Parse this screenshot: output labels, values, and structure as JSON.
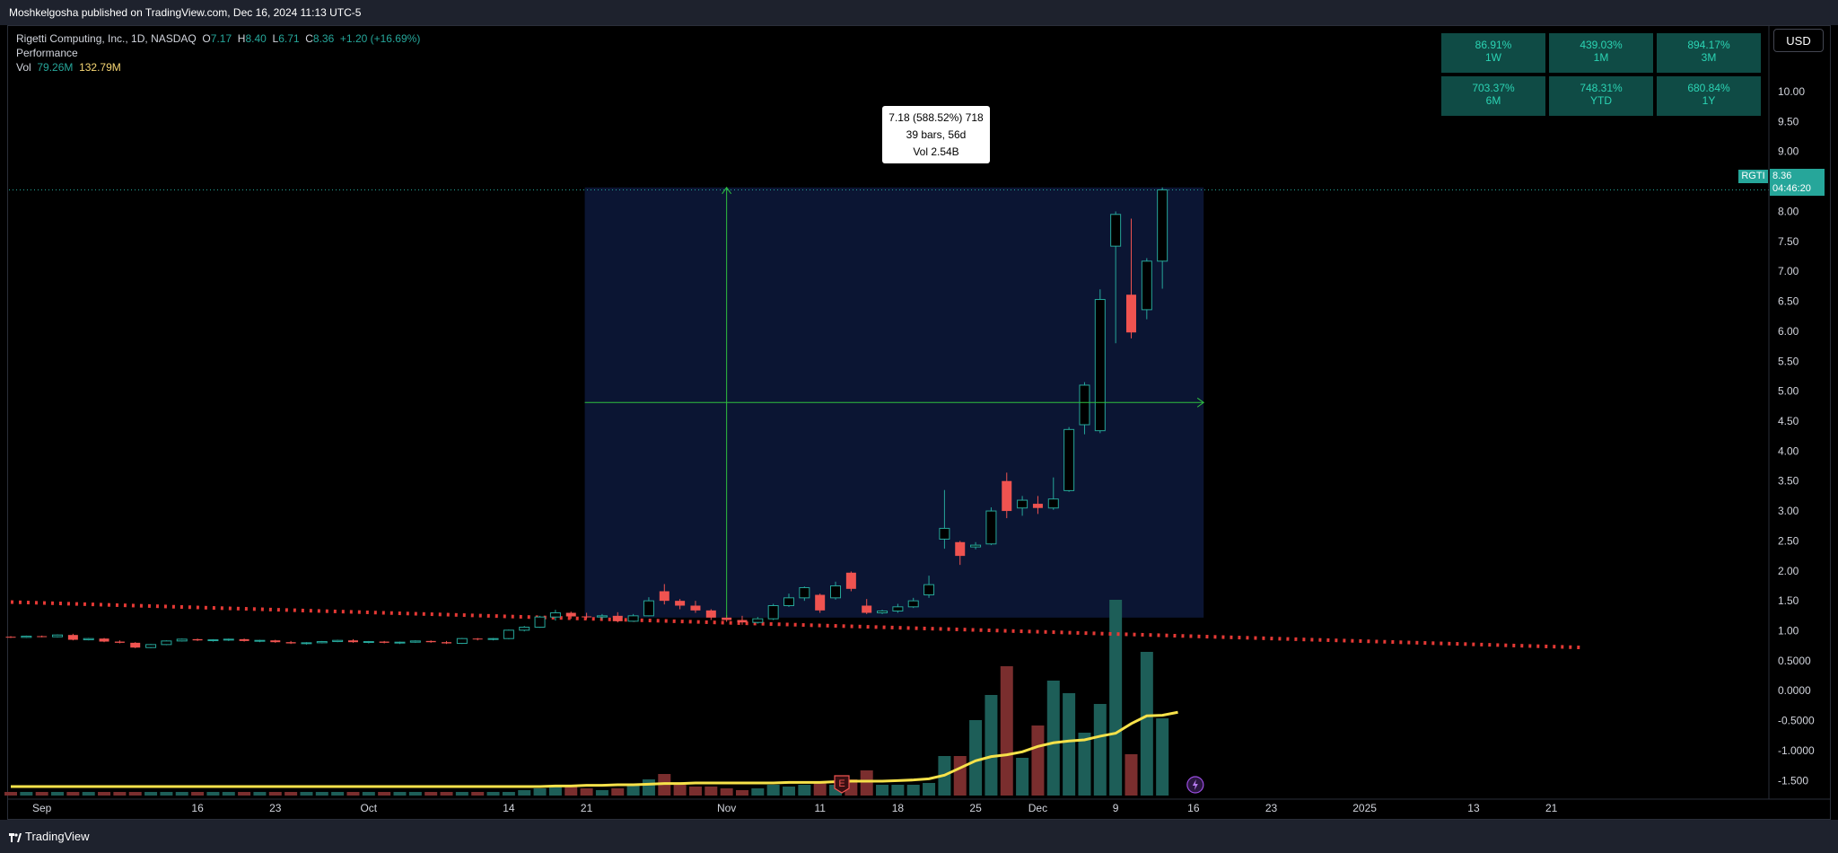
{
  "header": {
    "published": "Moshkelgosha published on TradingView.com, Dec 16, 2024 11:13 UTC-5"
  },
  "legend": {
    "symbol": "Rigetti Computing, Inc., 1D, NASDAQ",
    "open_label": "O",
    "open": "7.17",
    "high_label": "H",
    "high": "8.40",
    "low_label": "L",
    "low": "6.71",
    "close_label": "C",
    "close": "8.36",
    "change": "+1.20 (+16.69%)",
    "indicator": "Performance",
    "vol_label": "Vol",
    "vol": "79.26M",
    "vol_ma": "132.79M"
  },
  "performance": [
    {
      "value": "86.91%",
      "period": "1W"
    },
    {
      "value": "439.03%",
      "period": "1M"
    },
    {
      "value": "894.17%",
      "period": "3M"
    },
    {
      "value": "703.37%",
      "period": "6M"
    },
    {
      "value": "748.31%",
      "period": "YTD"
    },
    {
      "value": "680.84%",
      "period": "1Y"
    }
  ],
  "currency_button": "USD",
  "measure_tooltip": {
    "line1": "7.18 (588.52%) 718",
    "line2": "39 bars, 56d",
    "line3": "Vol 2.54B"
  },
  "price_badge": {
    "ticker": "RGTI",
    "price": "8.36",
    "countdown": "04:46:20"
  },
  "footer": {
    "brand": "TradingView"
  },
  "colors": {
    "up": "#26a69a",
    "down": "#ef5350",
    "ma": "#f7e24a",
    "measure_bg": "#0b1533",
    "dotted_ma": "#e53935"
  },
  "chart_data": {
    "type": "candlestick",
    "ylim": [
      -1.6,
      10.3
    ],
    "y_ticks": [
      "10.00",
      "9.50",
      "9.00",
      "8.50",
      "8.00",
      "7.50",
      "7.00",
      "6.50",
      "6.00",
      "5.50",
      "5.00",
      "4.50",
      "4.00",
      "3.50",
      "3.00",
      "2.50",
      "2.00",
      "1.50",
      "1.00",
      "0.5000",
      "0.0000",
      "-0.5000",
      "-1.0000",
      "-1.500"
    ],
    "y_tick_values": [
      10,
      9.5,
      9,
      8.5,
      8,
      7.5,
      7,
      6.5,
      6,
      5.5,
      5,
      4.5,
      4,
      3.5,
      3,
      2.5,
      2,
      1.5,
      1,
      0.5,
      0,
      -0.5,
      -1,
      -1.5
    ],
    "x_ticks": [
      {
        "label": "Sep",
        "idx": 2
      },
      {
        "label": "16",
        "idx": 12
      },
      {
        "label": "23",
        "idx": 17
      },
      {
        "label": "Oct",
        "idx": 23
      },
      {
        "label": "14",
        "idx": 32
      },
      {
        "label": "21",
        "idx": 37
      },
      {
        "label": "Nov",
        "idx": 46
      },
      {
        "label": "11",
        "idx": 52
      },
      {
        "label": "18",
        "idx": 57
      },
      {
        "label": "25",
        "idx": 62
      },
      {
        "label": "Dec",
        "idx": 66
      },
      {
        "label": "9",
        "idx": 71
      },
      {
        "label": "16",
        "idx": 76
      },
      {
        "label": "23",
        "idx": 81
      },
      {
        "label": "2025",
        "idx": 87
      },
      {
        "label": "13",
        "idx": 94
      },
      {
        "label": "21",
        "idx": 99
      }
    ],
    "candles": [
      [
        0.9,
        0.91,
        0.88,
        0.89
      ],
      [
        0.89,
        0.92,
        0.88,
        0.91
      ],
      [
        0.91,
        0.92,
        0.89,
        0.9
      ],
      [
        0.9,
        0.94,
        0.89,
        0.93
      ],
      [
        0.93,
        0.95,
        0.84,
        0.85
      ],
      [
        0.85,
        0.88,
        0.84,
        0.87
      ],
      [
        0.87,
        0.88,
        0.81,
        0.82
      ],
      [
        0.82,
        0.84,
        0.79,
        0.8
      ],
      [
        0.8,
        0.81,
        0.71,
        0.72
      ],
      [
        0.72,
        0.78,
        0.71,
        0.77
      ],
      [
        0.77,
        0.84,
        0.76,
        0.83
      ],
      [
        0.83,
        0.87,
        0.82,
        0.86
      ],
      [
        0.86,
        0.87,
        0.83,
        0.84
      ],
      [
        0.84,
        0.86,
        0.82,
        0.85
      ],
      [
        0.85,
        0.87,
        0.83,
        0.86
      ],
      [
        0.86,
        0.87,
        0.82,
        0.83
      ],
      [
        0.83,
        0.85,
        0.81,
        0.84
      ],
      [
        0.84,
        0.85,
        0.8,
        0.81
      ],
      [
        0.81,
        0.83,
        0.78,
        0.79
      ],
      [
        0.79,
        0.81,
        0.77,
        0.8
      ],
      [
        0.8,
        0.83,
        0.79,
        0.82
      ],
      [
        0.82,
        0.85,
        0.81,
        0.84
      ],
      [
        0.84,
        0.86,
        0.8,
        0.81
      ],
      [
        0.81,
        0.83,
        0.79,
        0.82
      ],
      [
        0.82,
        0.83,
        0.79,
        0.8
      ],
      [
        0.8,
        0.82,
        0.78,
        0.81
      ],
      [
        0.81,
        0.84,
        0.8,
        0.83
      ],
      [
        0.83,
        0.84,
        0.8,
        0.81
      ],
      [
        0.81,
        0.83,
        0.78,
        0.79
      ],
      [
        0.79,
        0.88,
        0.78,
        0.87
      ],
      [
        0.87,
        0.88,
        0.84,
        0.86
      ],
      [
        0.86,
        0.88,
        0.84,
        0.87
      ],
      [
        0.87,
        1.02,
        0.86,
        1.01
      ],
      [
        1.01,
        1.08,
        0.99,
        1.06
      ],
      [
        1.06,
        1.25,
        1.05,
        1.23
      ],
      [
        1.23,
        1.35,
        1.17,
        1.3
      ],
      [
        1.3,
        1.32,
        1.2,
        1.24
      ],
      [
        1.24,
        1.3,
        1.2,
        1.23
      ],
      [
        1.23,
        1.28,
        1.19,
        1.25
      ],
      [
        1.25,
        1.31,
        1.14,
        1.16
      ],
      [
        1.16,
        1.28,
        1.15,
        1.25
      ],
      [
        1.25,
        1.56,
        1.24,
        1.5
      ],
      [
        1.66,
        1.78,
        1.44,
        1.5
      ],
      [
        1.5,
        1.53,
        1.36,
        1.42
      ],
      [
        1.42,
        1.5,
        1.3,
        1.34
      ],
      [
        1.34,
        1.36,
        1.18,
        1.22
      ],
      [
        1.22,
        1.26,
        1.15,
        1.18
      ],
      [
        1.18,
        1.25,
        1.1,
        1.14
      ],
      [
        1.14,
        1.23,
        1.12,
        1.2
      ],
      [
        1.2,
        1.45,
        1.18,
        1.42
      ],
      [
        1.42,
        1.62,
        1.4,
        1.55
      ],
      [
        1.55,
        1.74,
        1.5,
        1.72
      ],
      [
        1.6,
        1.62,
        1.3,
        1.34
      ],
      [
        1.55,
        1.82,
        1.52,
        1.75
      ],
      [
        1.97,
        1.99,
        1.66,
        1.7
      ],
      [
        1.42,
        1.53,
        1.28,
        1.3
      ],
      [
        1.3,
        1.35,
        1.28,
        1.33
      ],
      [
        1.33,
        1.45,
        1.3,
        1.4
      ],
      [
        1.4,
        1.55,
        1.38,
        1.5
      ],
      [
        1.6,
        1.92,
        1.55,
        1.77
      ],
      [
        2.53,
        3.35,
        2.37,
        2.71
      ],
      [
        2.48,
        2.5,
        2.1,
        2.25
      ],
      [
        2.4,
        2.48,
        2.36,
        2.43
      ],
      [
        2.45,
        3.06,
        2.43,
        3.0
      ],
      [
        3.5,
        3.64,
        2.88,
        3.0
      ],
      [
        3.05,
        3.25,
        2.92,
        3.18
      ],
      [
        3.12,
        3.25,
        2.95,
        3.05
      ],
      [
        3.05,
        3.56,
        3.02,
        3.2
      ],
      [
        3.34,
        4.4,
        3.32,
        4.36
      ],
      [
        4.44,
        5.15,
        4.28,
        5.1
      ],
      [
        4.34,
        6.7,
        4.3,
        6.53
      ],
      [
        7.42,
        8.0,
        5.8,
        7.95
      ],
      [
        6.61,
        7.88,
        5.88,
        5.98
      ],
      [
        6.36,
        7.22,
        6.2,
        7.17
      ],
      [
        7.17,
        8.4,
        6.71,
        8.36
      ]
    ],
    "volume_height": [
      0.02,
      0.02,
      0.02,
      0.02,
      0.02,
      0.02,
      0.02,
      0.02,
      0.02,
      0.02,
      0.02,
      0.02,
      0.02,
      0.02,
      0.02,
      0.02,
      0.02,
      0.02,
      0.02,
      0.02,
      0.02,
      0.02,
      0.02,
      0.02,
      0.02,
      0.02,
      0.02,
      0.02,
      0.02,
      0.02,
      0.02,
      0.02,
      0.02,
      0.03,
      0.04,
      0.05,
      0.06,
      0.04,
      0.03,
      0.04,
      0.06,
      0.09,
      0.12,
      0.06,
      0.05,
      0.05,
      0.04,
      0.03,
      0.04,
      0.06,
      0.05,
      0.06,
      0.08,
      0.06,
      0.09,
      0.14,
      0.06,
      0.06,
      0.06,
      0.07,
      0.22,
      0.22,
      0.42,
      0.56,
      0.72,
      0.21,
      0.39,
      0.64,
      0.57,
      0.35,
      0.51,
      1.09,
      0.23,
      0.8,
      0.43,
      0.32
    ],
    "volume_ma_y": [
      -1.6,
      -1.6,
      -1.6,
      -1.6,
      -1.6,
      -1.6,
      -1.6,
      -1.6,
      -1.6,
      -1.6,
      -1.6,
      -1.6,
      -1.6,
      -1.6,
      -1.6,
      -1.6,
      -1.6,
      -1.6,
      -1.6,
      -1.6,
      -1.6,
      -1.6,
      -1.6,
      -1.6,
      -1.6,
      -1.6,
      -1.6,
      -1.6,
      -1.6,
      -1.6,
      -1.6,
      -1.6,
      -1.6,
      -1.6,
      -1.6,
      -1.59,
      -1.59,
      -1.58,
      -1.58,
      -1.57,
      -1.57,
      -1.56,
      -1.55,
      -1.55,
      -1.54,
      -1.54,
      -1.54,
      -1.54,
      -1.54,
      -1.54,
      -1.53,
      -1.53,
      -1.53,
      -1.52,
      -1.51,
      -1.51,
      -1.51,
      -1.5,
      -1.49,
      -1.47,
      -1.41,
      -1.29,
      -1.17,
      -1.1,
      -1.07,
      -1.02,
      -0.93,
      -0.87,
      -0.84,
      -0.82,
      -0.76,
      -0.71,
      -0.55,
      -0.42,
      -0.41,
      -0.36
    ],
    "dotted_ma": {
      "x_idx_start": 0,
      "y_start": 1.48,
      "x_idx_end": 100,
      "y_end": 0.72
    },
    "measure_range": {
      "x_idx_start": 37,
      "x_idx_end": 77,
      "y_low": 1.22,
      "y_high": 8.4
    }
  }
}
